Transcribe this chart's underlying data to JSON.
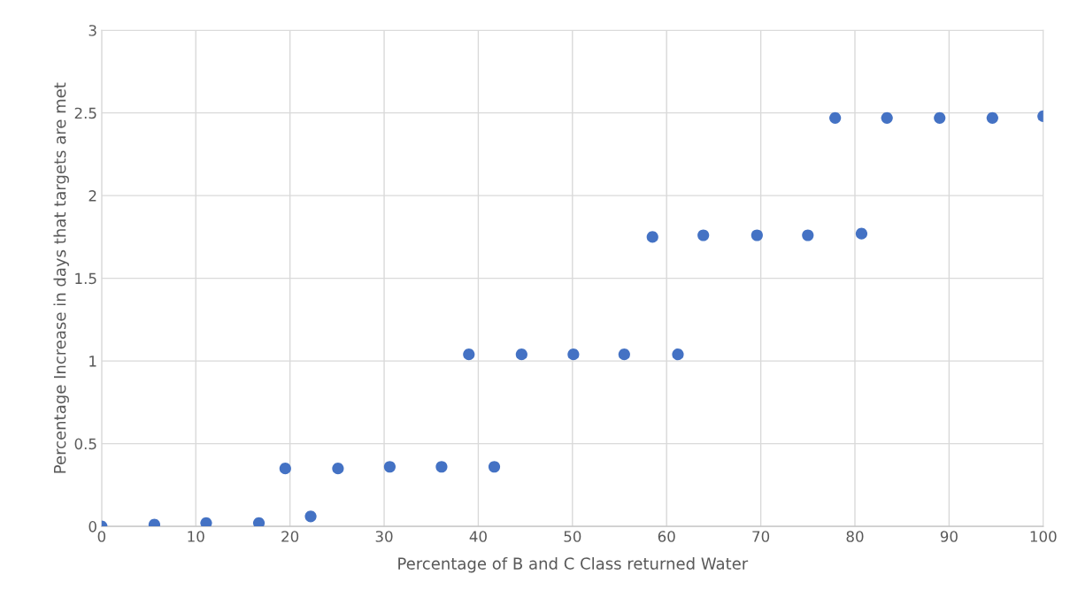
{
  "chart_data": {
    "type": "scatter",
    "xlabel": "Percentage of B and C Class returned Water",
    "ylabel": "Percentage Increase in days that targets are met",
    "x": [
      0,
      5.6,
      11.1,
      16.7,
      19.5,
      22.2,
      25.1,
      30.6,
      36.1,
      39.0,
      41.7,
      44.6,
      50.1,
      55.5,
      58.5,
      61.2,
      63.9,
      69.6,
      75.0,
      77.9,
      80.7,
      83.4,
      89.0,
      94.6,
      100
    ],
    "series": [
      {
        "color": "#4472c4",
        "values": [
          0,
          0.01,
          0.02,
          0.02,
          0.35,
          0.06,
          0.35,
          0.36,
          0.36,
          1.04,
          0.36,
          1.04,
          1.04,
          1.04,
          1.75,
          1.04,
          1.76,
          1.76,
          1.76,
          2.47,
          1.77,
          2.47,
          2.47,
          2.47,
          2.48
        ]
      }
    ],
    "xlim": [
      0,
      100
    ],
    "xticks": [
      0,
      10,
      20,
      30,
      40,
      50,
      60,
      70,
      80,
      90,
      100
    ],
    "ylim": [
      0,
      3
    ],
    "yticks": [
      0,
      0.5,
      1,
      1.5,
      2,
      2.5,
      3
    ],
    "grid": true,
    "marker": "circle",
    "legend": false
  }
}
